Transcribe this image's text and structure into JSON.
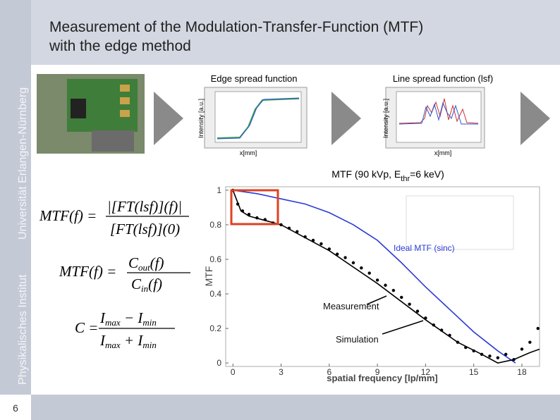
{
  "slide": {
    "title_line1": "Measurement of the Modulation-Transfer-Function (MTF)",
    "title_line2": "with the edge method",
    "sidebar_top": "Universität Erlangen-Nürnberg",
    "sidebar_bottom": "Physikalisches Institut",
    "page_number": "6"
  },
  "esf_plot": {
    "title": "Edge spread function",
    "ylabel": "Intensity [a.u.]",
    "xlabel": "x[mm]"
  },
  "lsf_plot": {
    "title": "Line spread function (lsf)",
    "ylabel": "Intensity [a.u.]",
    "xlabel": "x[mm]"
  },
  "formulas": {
    "f1": {
      "lhs": "MTF(f) =",
      "num": "|[FT(lsf)](f)|",
      "den": "[FT(lsf)](0)"
    },
    "f2": {
      "lhs": "MTF(f) =",
      "num": [
        "C",
        "out",
        "(f)"
      ],
      "den": [
        "C",
        "in",
        "(f)"
      ]
    },
    "f3": {
      "lhs": "C =",
      "num": [
        "I",
        "max",
        " − I",
        "min"
      ],
      "den": [
        "I",
        "max",
        " + I",
        "min"
      ]
    }
  },
  "chart_data": {
    "type": "line",
    "title": [
      "MTF (90 kVp, E",
      "thr",
      "=6 keV)"
    ],
    "xlabel": "spatial frequency [lp/mm]",
    "ylabel": "MTF",
    "xlim": [
      -0.45,
      19.1
    ],
    "ylim": [
      -0.02,
      1.02
    ],
    "xticks": [
      0,
      3,
      6,
      9,
      12,
      15,
      18
    ],
    "yticks": [
      0,
      0.2,
      0.4,
      0.6,
      0.8,
      1
    ],
    "series": [
      {
        "name": "Ideal MTF (sinc)",
        "color": "#2b3bd6",
        "style": "line",
        "x": [
          0,
          1.5,
          3,
          4.5,
          6,
          7.5,
          9,
          10.5,
          12,
          13.5,
          15,
          16.5,
          17.6
        ],
        "values": [
          1,
          0.98,
          0.95,
          0.92,
          0.87,
          0.8,
          0.71,
          0.58,
          0.44,
          0.31,
          0.18,
          0.07,
          0
        ]
      },
      {
        "name": "Measurement",
        "color": "#000000",
        "style": "dots",
        "x": [
          0,
          0.3,
          0.6,
          1,
          1.5,
          2,
          2.5,
          3,
          3.5,
          4,
          4.5,
          5,
          5.5,
          6,
          6.5,
          7,
          7.5,
          8,
          8.5,
          9,
          9.5,
          10,
          10.5,
          11,
          11.5,
          12,
          12.5,
          13,
          13.5,
          14,
          14.5,
          15,
          15.5,
          16,
          16.5,
          17,
          17.5,
          18,
          18.5,
          19
        ],
        "values": [
          1,
          0.92,
          0.88,
          0.86,
          0.84,
          0.83,
          0.81,
          0.8,
          0.78,
          0.76,
          0.73,
          0.71,
          0.69,
          0.66,
          0.63,
          0.61,
          0.58,
          0.55,
          0.52,
          0.48,
          0.45,
          0.42,
          0.38,
          0.34,
          0.3,
          0.26,
          0.22,
          0.19,
          0.16,
          0.12,
          0.09,
          0.07,
          0.05,
          0.04,
          0.03,
          0.05,
          0.02,
          0.08,
          0.12,
          0.2
        ]
      },
      {
        "name": "Simulation",
        "color": "#000000",
        "style": "line",
        "x": [
          0,
          0.5,
          1,
          3,
          6,
          9,
          12,
          14,
          15.5,
          16.5,
          17.5,
          18.5,
          19.1
        ],
        "values": [
          1,
          0.88,
          0.85,
          0.8,
          0.65,
          0.46,
          0.25,
          0.12,
          0.05,
          0,
          0.02,
          0.06,
          0.08
        ]
      }
    ]
  }
}
